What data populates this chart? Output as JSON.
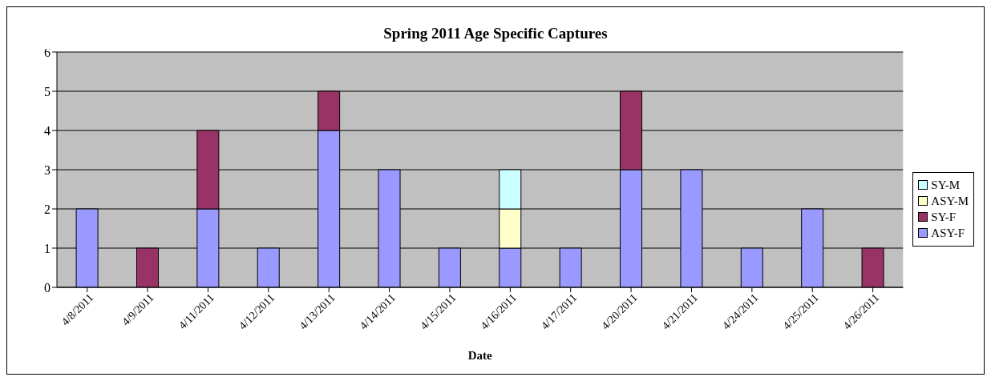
{
  "chart_data": {
    "type": "bar",
    "title": "Spring 2011 Age Specific Captures",
    "xlabel": "Date",
    "categories": [
      "4/8/2011",
      "4/9/2011",
      "4/11/2011",
      "4/12/2011",
      "4/13/2011",
      "4/14/2011",
      "4/15/2011",
      "4/16/2011",
      "4/17/2011",
      "4/20/2011",
      "4/21/2011",
      "4/24/2011",
      "4/25/2011",
      "4/26/2011"
    ],
    "stacked": true,
    "series": [
      {
        "name": "ASY-F",
        "color": "#9999ff",
        "values": [
          2,
          0,
          2,
          1,
          4,
          3,
          1,
          1,
          1,
          3,
          3,
          1,
          2,
          0
        ]
      },
      {
        "name": "SY-F",
        "color": "#993366",
        "values": [
          0,
          1,
          2,
          0,
          1,
          0,
          0,
          0,
          0,
          2,
          0,
          0,
          0,
          1
        ]
      },
      {
        "name": "ASY-M",
        "color": "#ffffcc",
        "values": [
          0,
          0,
          0,
          0,
          0,
          0,
          0,
          1,
          0,
          0,
          0,
          0,
          0,
          0
        ]
      },
      {
        "name": "SY-M",
        "color": "#ccffff",
        "values": [
          0,
          0,
          0,
          0,
          0,
          0,
          0,
          1,
          0,
          0,
          0,
          0,
          0,
          0
        ]
      }
    ],
    "ylim": [
      0,
      6
    ],
    "yticks": [
      0,
      1,
      2,
      3,
      4,
      5,
      6
    ],
    "grid": "y",
    "legend": "right"
  }
}
